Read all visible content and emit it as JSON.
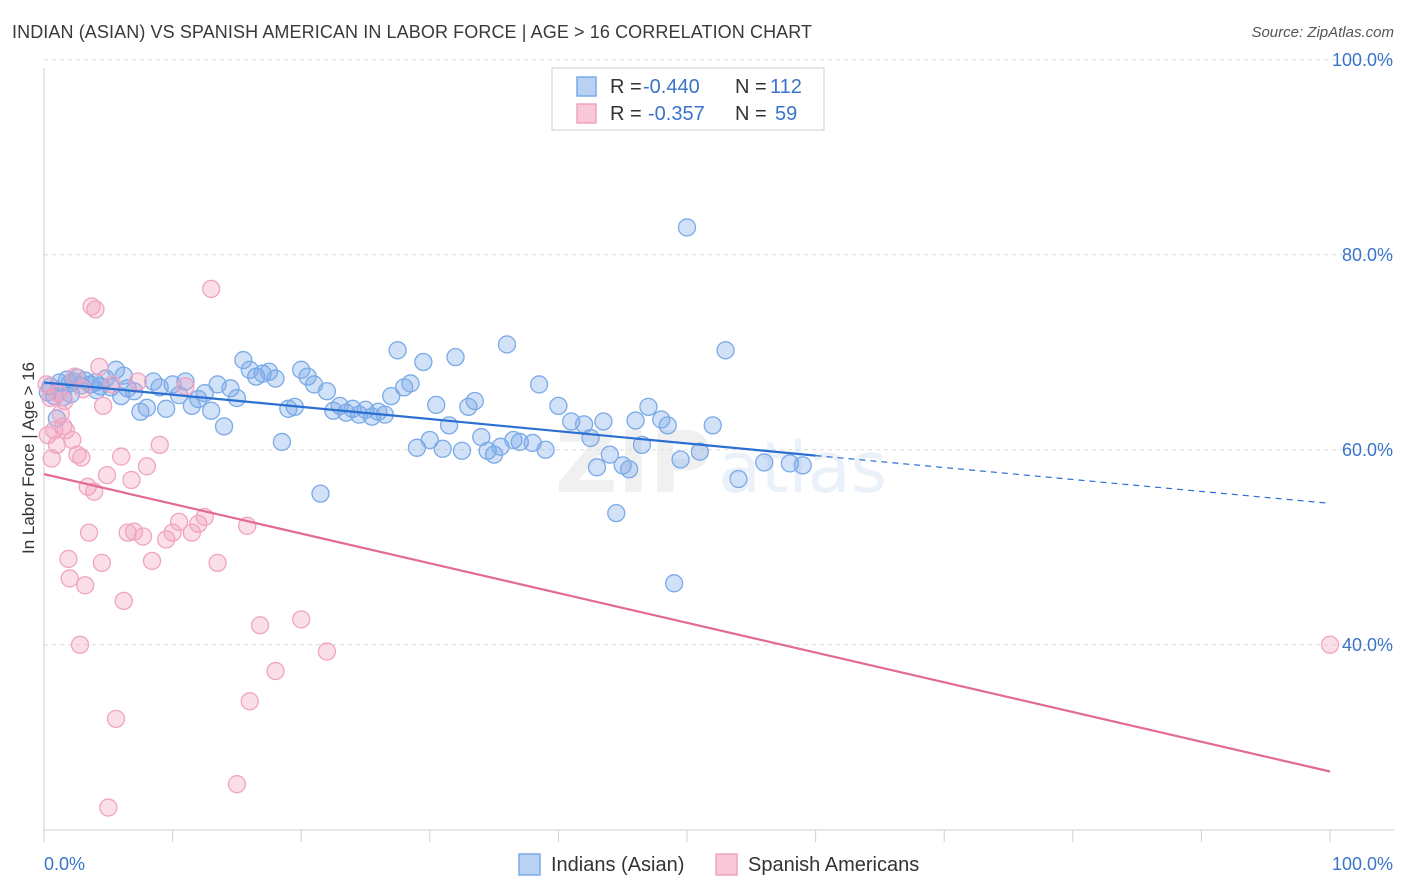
{
  "header": {
    "title": "INDIAN (ASIAN) VS SPANISH AMERICAN IN LABOR FORCE | AGE > 16 CORRELATION CHART",
    "source": "Source: ZipAtlas.com"
  },
  "watermark": {
    "zip": "ZIP",
    "atlas": "atlas"
  },
  "legend_box": {
    "rows": [
      {
        "r_label": "R =",
        "r_value": "-0.440",
        "n_label": "N =",
        "n_value": "112"
      },
      {
        "r_label": "R =",
        "r_value": "-0.357",
        "n_label": "N =",
        "n_value": "59"
      }
    ]
  },
  "chart_data": {
    "type": "scatter",
    "title": "INDIAN (ASIAN) VS SPANISH AMERICAN IN LABOR FORCE | AGE > 16 CORRELATION CHART",
    "xlabel": "",
    "ylabel": "In Labor Force | Age > 16",
    "xlim": [
      0,
      100
    ],
    "ylim": [
      21,
      101
    ],
    "x_tick_labels": [
      "0.0%",
      "100.0%"
    ],
    "y_ticks": [
      40,
      60,
      80,
      100
    ],
    "y_tick_labels": [
      "40.0%",
      "60.0%",
      "80.0%",
      "100.0%"
    ],
    "grid": true,
    "legend_position": "bottom",
    "series": [
      {
        "name": "Indians (Asian)",
        "color": "#7aaae8",
        "line_color": "#2a6fd1",
        "r": -0.44,
        "n": 112,
        "trend": {
          "x0": 0,
          "y0": 66.9,
          "x1": 60,
          "y1": 59.4,
          "dashed_to": 100,
          "y_dashed_end": 54.5
        },
        "points": [
          [
            0.5,
            66.5
          ],
          [
            0.8,
            65.5
          ],
          [
            1.0,
            63.2
          ],
          [
            1.2,
            66.9
          ],
          [
            1.5,
            65.4
          ],
          [
            1.8,
            67.2
          ],
          [
            2.0,
            66.8
          ],
          [
            2.3,
            67.0
          ],
          [
            2.6,
            67.4
          ],
          [
            2.9,
            66.6
          ],
          [
            3.2,
            67.1
          ],
          [
            3.6,
            66.7
          ],
          [
            4.0,
            66.9
          ],
          [
            4.4,
            66.5
          ],
          [
            4.8,
            67.3
          ],
          [
            5.2,
            66.4
          ],
          [
            5.6,
            68.2
          ],
          [
            6.0,
            65.5
          ],
          [
            6.5,
            66.3
          ],
          [
            7.0,
            66.0
          ],
          [
            7.5,
            63.9
          ],
          [
            8.0,
            64.3
          ],
          [
            8.5,
            67.0
          ],
          [
            9.0,
            66.4
          ],
          [
            9.5,
            64.2
          ],
          [
            10.0,
            66.7
          ],
          [
            10.5,
            65.6
          ],
          [
            11.0,
            67.0
          ],
          [
            11.5,
            64.5
          ],
          [
            12.0,
            65.2
          ],
          [
            12.5,
            65.8
          ],
          [
            13.0,
            64.0
          ],
          [
            13.5,
            66.7
          ],
          [
            14.0,
            62.4
          ],
          [
            14.5,
            66.3
          ],
          [
            15.0,
            65.3
          ],
          [
            15.5,
            69.2
          ],
          [
            16.0,
            68.2
          ],
          [
            16.5,
            67.5
          ],
          [
            17.0,
            67.8
          ],
          [
            17.5,
            68.0
          ],
          [
            18.0,
            67.3
          ],
          [
            18.5,
            60.8
          ],
          [
            19.0,
            64.2
          ],
          [
            19.5,
            64.4
          ],
          [
            20.0,
            68.2
          ],
          [
            20.5,
            67.5
          ],
          [
            21.0,
            66.7
          ],
          [
            21.5,
            55.5
          ],
          [
            22.0,
            66.0
          ],
          [
            22.5,
            64.0
          ],
          [
            23.0,
            64.5
          ],
          [
            23.5,
            63.8
          ],
          [
            24.0,
            64.2
          ],
          [
            24.5,
            63.6
          ],
          [
            25.0,
            64.1
          ],
          [
            25.5,
            63.4
          ],
          [
            26.0,
            63.9
          ],
          [
            26.5,
            63.6
          ],
          [
            27.0,
            65.5
          ],
          [
            27.5,
            70.2
          ],
          [
            28.0,
            66.4
          ],
          [
            28.5,
            66.8
          ],
          [
            29.0,
            60.2
          ],
          [
            29.5,
            69.0
          ],
          [
            30.0,
            61.0
          ],
          [
            30.5,
            64.6
          ],
          [
            31.0,
            60.1
          ],
          [
            31.5,
            62.5
          ],
          [
            32.0,
            69.5
          ],
          [
            32.5,
            59.9
          ],
          [
            33.0,
            64.4
          ],
          [
            33.5,
            65.0
          ],
          [
            34.0,
            61.3
          ],
          [
            34.5,
            59.9
          ],
          [
            35.0,
            59.5
          ],
          [
            35.5,
            60.3
          ],
          [
            36.0,
            70.8
          ],
          [
            36.5,
            61.0
          ],
          [
            37.0,
            60.8
          ],
          [
            38.0,
            60.7
          ],
          [
            38.5,
            66.7
          ],
          [
            39.0,
            60.0
          ],
          [
            40.0,
            64.5
          ],
          [
            41.0,
            62.9
          ],
          [
            42.0,
            62.6
          ],
          [
            42.5,
            61.2
          ],
          [
            43.0,
            58.2
          ],
          [
            43.5,
            62.9
          ],
          [
            44.0,
            59.5
          ],
          [
            44.5,
            53.5
          ],
          [
            45.0,
            58.4
          ],
          [
            45.5,
            58.0
          ],
          [
            46.0,
            63.0
          ],
          [
            46.5,
            60.5
          ],
          [
            47.0,
            64.4
          ],
          [
            48.0,
            63.1
          ],
          [
            48.5,
            62.5
          ],
          [
            49.0,
            46.3
          ],
          [
            49.5,
            59.0
          ],
          [
            50.0,
            82.8
          ],
          [
            51.0,
            59.8
          ],
          [
            52.0,
            62.5
          ],
          [
            53.0,
            70.2
          ],
          [
            54.0,
            57.0
          ],
          [
            56.0,
            58.7
          ],
          [
            58.0,
            58.6
          ],
          [
            59.0,
            58.4
          ],
          [
            0.3,
            65.9
          ],
          [
            2.1,
            65.7
          ],
          [
            4.1,
            66.1
          ],
          [
            6.2,
            67.6
          ]
        ]
      },
      {
        "name": "Spanish Americans",
        "color": "#f1a4c0",
        "line_color": "#e26a96",
        "r": -0.357,
        "n": 59,
        "trend": {
          "x0": 0,
          "y0": 57.5,
          "x1": 100,
          "y1": 27.0
        },
        "points": [
          [
            0.2,
            66.7
          ],
          [
            0.3,
            61.5
          ],
          [
            0.5,
            65.3
          ],
          [
            0.6,
            59.1
          ],
          [
            0.8,
            62.0
          ],
          [
            1.0,
            60.5
          ],
          [
            1.1,
            65.8
          ],
          [
            1.3,
            63.7
          ],
          [
            1.5,
            62.4
          ],
          [
            1.6,
            65.0
          ],
          [
            1.7,
            62.0
          ],
          [
            1.9,
            48.8
          ],
          [
            2.0,
            46.8
          ],
          [
            2.2,
            61.0
          ],
          [
            2.4,
            67.5
          ],
          [
            2.6,
            59.5
          ],
          [
            2.8,
            40.0
          ],
          [
            2.9,
            59.2
          ],
          [
            3.0,
            66.2
          ],
          [
            3.2,
            46.1
          ],
          [
            3.4,
            56.2
          ],
          [
            3.5,
            51.5
          ],
          [
            3.7,
            74.7
          ],
          [
            3.9,
            55.7
          ],
          [
            4.0,
            74.4
          ],
          [
            4.3,
            68.5
          ],
          [
            4.5,
            48.4
          ],
          [
            4.6,
            64.5
          ],
          [
            4.9,
            57.4
          ],
          [
            5.0,
            23.3
          ],
          [
            5.3,
            66.7
          ],
          [
            5.6,
            32.4
          ],
          [
            6.0,
            59.3
          ],
          [
            6.2,
            44.5
          ],
          [
            6.5,
            51.5
          ],
          [
            6.8,
            56.9
          ],
          [
            7.0,
            51.6
          ],
          [
            7.3,
            67.0
          ],
          [
            7.7,
            51.1
          ],
          [
            8.0,
            58.3
          ],
          [
            8.4,
            48.6
          ],
          [
            9.0,
            60.5
          ],
          [
            9.5,
            50.8
          ],
          [
            10.0,
            51.5
          ],
          [
            10.5,
            52.6
          ],
          [
            11.0,
            66.5
          ],
          [
            11.5,
            51.5
          ],
          [
            12.0,
            52.4
          ],
          [
            12.5,
            53.1
          ],
          [
            13.0,
            76.5
          ],
          [
            13.5,
            48.4
          ],
          [
            15.0,
            25.7
          ],
          [
            15.8,
            52.2
          ],
          [
            16.0,
            34.2
          ],
          [
            16.8,
            42.0
          ],
          [
            18.0,
            37.3
          ],
          [
            20.0,
            42.6
          ],
          [
            22.0,
            39.3
          ],
          [
            100.0,
            40.0
          ]
        ]
      }
    ]
  }
}
